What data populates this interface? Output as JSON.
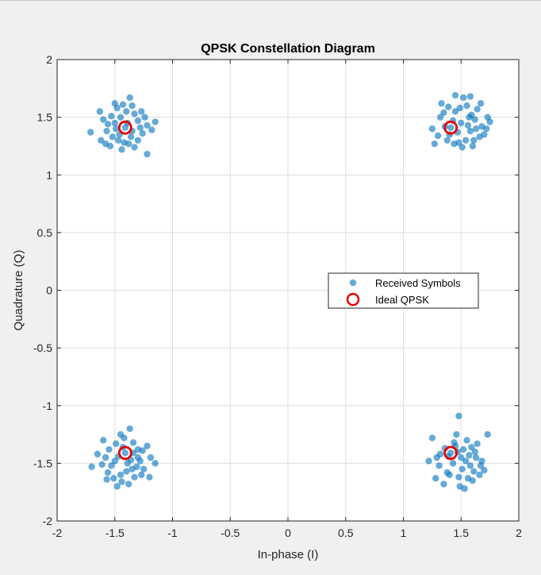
{
  "window": {
    "background": "#f0f0f0"
  },
  "chart_data": {
    "type": "scatter",
    "title": "QPSK Constellation Diagram",
    "xlabel": "In-phase (I)",
    "ylabel": "Quadrature (Q)",
    "xlim": [
      -2,
      2
    ],
    "ylim": [
      -2,
      2
    ],
    "xticks": [
      -2,
      -1.5,
      -1,
      -0.5,
      0,
      0.5,
      1,
      1.5,
      2
    ],
    "yticks": [
      -2,
      -1.5,
      -1,
      -0.5,
      0,
      0.5,
      1,
      1.5,
      2
    ],
    "xtick_labels": [
      "-2",
      "-1.5",
      "-1",
      "-0.5",
      "0",
      "0.5",
      "1",
      "1.5",
      "2"
    ],
    "ytick_labels": [
      "-2",
      "-1.5",
      "-1",
      "-0.5",
      "0",
      "0.5",
      "1",
      "1.5",
      "2"
    ],
    "grid": true,
    "legend_position": "center-right",
    "series": [
      {
        "name": "Received Symbols",
        "marker": "filled-circle",
        "color": "#0072bd",
        "alpha": 0.6,
        "points": [
          [
            -1.41,
            1.41
          ],
          [
            -1.45,
            1.5
          ],
          [
            -1.35,
            1.38
          ],
          [
            -1.52,
            1.33
          ],
          [
            -1.3,
            1.47
          ],
          [
            -1.48,
            1.58
          ],
          [
            -1.38,
            1.27
          ],
          [
            -1.56,
            1.44
          ],
          [
            -1.26,
            1.36
          ],
          [
            -1.43,
            1.61
          ],
          [
            -1.6,
            1.48
          ],
          [
            -1.33,
            1.53
          ],
          [
            -1.47,
            1.3
          ],
          [
            -1.22,
            1.43
          ],
          [
            -1.54,
            1.25
          ],
          [
            -1.4,
            1.55
          ],
          [
            -1.71,
            1.37
          ],
          [
            -1.62,
            1.3
          ],
          [
            -1.58,
            1.27
          ],
          [
            -1.37,
            1.67
          ],
          [
            -1.15,
            1.46
          ],
          [
            -1.22,
            1.18
          ],
          [
            -1.5,
            1.62
          ],
          [
            -1.3,
            1.3
          ],
          [
            -1.44,
            1.22
          ],
          [
            -1.35,
            1.6
          ],
          [
            -1.63,
            1.55
          ],
          [
            -1.27,
            1.55
          ],
          [
            -1.49,
            1.4
          ],
          [
            -1.39,
            1.45
          ],
          [
            -1.28,
            1.41
          ],
          [
            -1.53,
            1.51
          ],
          [
            -1.33,
            1.24
          ],
          [
            -1.46,
            1.35
          ],
          [
            -1.18,
            1.39
          ],
          [
            -1.57,
            1.38
          ],
          [
            -1.24,
            1.5
          ],
          [
            -1.42,
            1.28
          ],
          [
            -1.36,
            1.33
          ],
          [
            -1.5,
            1.45
          ],
          [
            1.41,
            1.41
          ],
          [
            1.5,
            1.45
          ],
          [
            1.58,
            1.38
          ],
          [
            1.45,
            1.55
          ],
          [
            1.62,
            1.48
          ],
          [
            1.38,
            1.3
          ],
          [
            1.55,
            1.6
          ],
          [
            1.68,
            1.42
          ],
          [
            1.32,
            1.5
          ],
          [
            1.48,
            1.28
          ],
          [
            1.7,
            1.35
          ],
          [
            1.6,
            1.25
          ],
          [
            1.25,
            1.4
          ],
          [
            1.33,
            1.62
          ],
          [
            1.52,
            1.67
          ],
          [
            1.45,
            1.69
          ],
          [
            1.58,
            1.68
          ],
          [
            1.75,
            1.46
          ],
          [
            1.73,
            1.5
          ],
          [
            1.27,
            1.27
          ],
          [
            1.39,
            1.59
          ],
          [
            1.64,
            1.57
          ],
          [
            1.54,
            1.3
          ],
          [
            1.36,
            1.42
          ],
          [
            1.59,
            1.52
          ],
          [
            1.66,
            1.33
          ],
          [
            1.47,
            1.37
          ],
          [
            1.3,
            1.34
          ],
          [
            1.56,
            1.43
          ],
          [
            1.43,
            1.47
          ],
          [
            1.51,
            1.24
          ],
          [
            1.67,
            1.62
          ],
          [
            1.35,
            1.54
          ],
          [
            1.63,
            1.4
          ],
          [
            1.49,
            1.58
          ],
          [
            1.4,
            1.35
          ],
          [
            1.72,
            1.4
          ],
          [
            1.57,
            1.5
          ],
          [
            1.44,
            1.27
          ],
          [
            1.61,
            1.3
          ],
          [
            -1.41,
            -1.41
          ],
          [
            -1.5,
            -1.48
          ],
          [
            -1.35,
            -1.55
          ],
          [
            -1.3,
            -1.45
          ],
          [
            -1.45,
            -1.6
          ],
          [
            -1.55,
            -1.38
          ],
          [
            -1.38,
            -1.68
          ],
          [
            -1.25,
            -1.55
          ],
          [
            -1.6,
            -1.3
          ],
          [
            -1.65,
            -1.42
          ],
          [
            -1.7,
            -1.53
          ],
          [
            -1.48,
            -1.7
          ],
          [
            -1.34,
            -1.32
          ],
          [
            -1.42,
            -1.28
          ],
          [
            -1.2,
            -1.62
          ],
          [
            -1.15,
            -1.5
          ],
          [
            -1.37,
            -1.2
          ],
          [
            -1.45,
            -1.25
          ],
          [
            -1.3,
            -1.38
          ],
          [
            -1.56,
            -1.58
          ],
          [
            -1.28,
            -1.48
          ],
          [
            -1.51,
            -1.63
          ],
          [
            -1.33,
            -1.62
          ],
          [
            -1.47,
            -1.44
          ],
          [
            -1.39,
            -1.5
          ],
          [
            -1.22,
            -1.35
          ],
          [
            -1.58,
            -1.45
          ],
          [
            -1.43,
            -1.36
          ],
          [
            -1.27,
            -1.6
          ],
          [
            -1.36,
            -1.47
          ],
          [
            -1.53,
            -1.52
          ],
          [
            -1.4,
            -1.57
          ],
          [
            -1.31,
            -1.53
          ],
          [
            -1.61,
            -1.51
          ],
          [
            -1.19,
            -1.45
          ],
          [
            -1.44,
            -1.66
          ],
          [
            -1.26,
            -1.39
          ],
          [
            -1.49,
            -1.33
          ],
          [
            -1.34,
            -1.41
          ],
          [
            -1.57,
            -1.64
          ],
          [
            1.41,
            -1.41
          ],
          [
            1.5,
            -1.45
          ],
          [
            1.58,
            -1.52
          ],
          [
            1.45,
            -1.35
          ],
          [
            1.62,
            -1.4
          ],
          [
            1.38,
            -1.58
          ],
          [
            1.55,
            -1.3
          ],
          [
            1.68,
            -1.48
          ],
          [
            1.32,
            -1.42
          ],
          [
            1.48,
            -1.62
          ],
          [
            1.7,
            -1.56
          ],
          [
            1.6,
            -1.65
          ],
          [
            1.35,
            -1.68
          ],
          [
            1.48,
            -1.09
          ],
          [
            1.46,
            -1.25
          ],
          [
            1.73,
            -1.25
          ],
          [
            1.25,
            -1.28
          ],
          [
            1.22,
            -1.48
          ],
          [
            1.28,
            -1.63
          ],
          [
            1.53,
            -1.72
          ],
          [
            1.64,
            -1.33
          ],
          [
            1.43,
            -1.5
          ],
          [
            1.57,
            -1.43
          ],
          [
            1.36,
            -1.37
          ],
          [
            1.51,
            -1.55
          ],
          [
            1.66,
            -1.6
          ],
          [
            1.31,
            -1.52
          ],
          [
            1.47,
            -1.4
          ],
          [
            1.59,
            -1.36
          ],
          [
            1.4,
            -1.6
          ],
          [
            1.54,
            -1.48
          ],
          [
            1.63,
            -1.45
          ],
          [
            1.44,
            -1.32
          ],
          [
            1.29,
            -1.45
          ],
          [
            1.56,
            -1.63
          ],
          [
            1.49,
            -1.7
          ],
          [
            1.67,
            -1.52
          ],
          [
            1.39,
            -1.44
          ],
          [
            1.61,
            -1.57
          ],
          [
            1.52,
            -1.38
          ]
        ]
      },
      {
        "name": "Ideal QPSK",
        "marker": "open-circle",
        "color": "#e60000",
        "points": [
          [
            -1.41,
            1.41
          ],
          [
            1.41,
            1.41
          ],
          [
            -1.41,
            -1.41
          ],
          [
            1.41,
            -1.41
          ]
        ]
      }
    ]
  }
}
